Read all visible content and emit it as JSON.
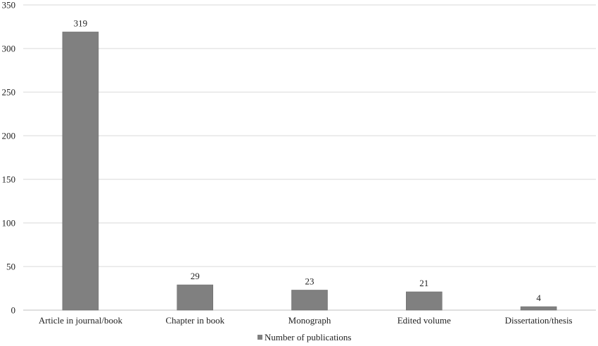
{
  "chart_data": {
    "type": "bar",
    "categories": [
      "Article in journal/book",
      "Chapter in book",
      "Monograph",
      "Edited volume",
      "Dissertation/thesis"
    ],
    "series": [
      {
        "name": "Number of publications",
        "values": [
          319,
          29,
          23,
          21,
          4
        ],
        "color": "#808080"
      }
    ],
    "ylim": [
      0,
      350
    ],
    "yticks": [
      0,
      50,
      100,
      150,
      200,
      250,
      300,
      350
    ],
    "grid": true,
    "legend_position": "bottom",
    "data_labels": true
  }
}
